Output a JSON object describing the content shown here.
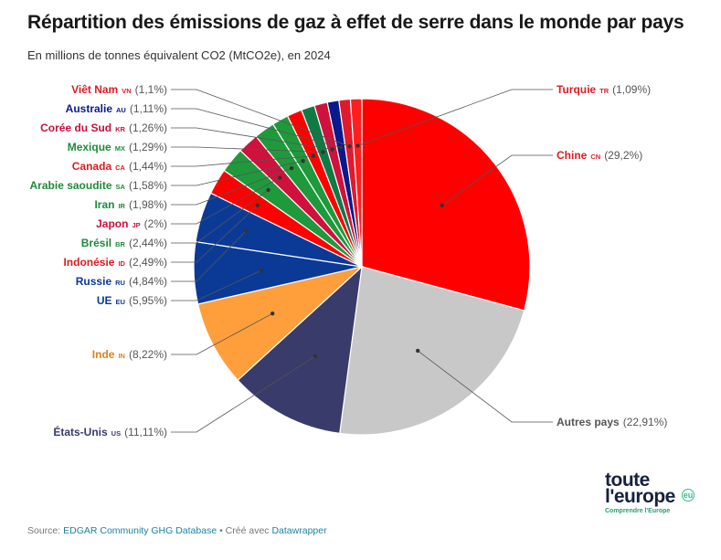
{
  "title": "Répartition des émissions de gaz à effet de serre dans le monde par pays",
  "subtitle": "En millions de tonnes équivalent CO2 (MtCO2e), en 2024",
  "footer": {
    "source_label": "Source: ",
    "source_name": "EDGAR Community GHG Database",
    "separator": " • Créé avec ",
    "tool": "Datawrapper"
  },
  "logo": {
    "line1": "toute",
    "line2": "l'europe",
    "suffix": "eu",
    "tagline": "Comprendre l'Europe"
  },
  "chart_data": {
    "type": "pie",
    "title": "Répartition des émissions de gaz à effet de serre dans le monde par pays",
    "unit": "%",
    "slices": [
      {
        "name": "Chine",
        "code": "CN",
        "value": 29.2,
        "display": "(29,2%)",
        "color": "#ff0000",
        "label_color": "#e01a22"
      },
      {
        "name": "Autres pays",
        "code": "",
        "value": 22.91,
        "display": "(22,91%)",
        "color": "#c8c8c8",
        "label_color": "#555555"
      },
      {
        "name": "États-Unis",
        "code": "US",
        "value": 11.11,
        "display": "(11,11%)",
        "color": "#393b6b",
        "label_color": "#393b6b"
      },
      {
        "name": "Inde",
        "code": "IN",
        "value": 8.22,
        "display": "(8,22%)",
        "color": "#ff9f3c",
        "label_color": "#d9821d"
      },
      {
        "name": "UE",
        "code": "EU",
        "value": 5.95,
        "display": "(5,95%)",
        "color": "#0b3a96",
        "label_color": "#0b3a96"
      },
      {
        "name": "Russie",
        "code": "RU",
        "value": 4.84,
        "display": "(4,84%)",
        "color": "#0b3a96",
        "label_color": "#0b3a96"
      },
      {
        "name": "Indonésie",
        "code": "ID",
        "value": 2.49,
        "display": "(2,49%)",
        "color": "#ff0000",
        "label_color": "#e01a22"
      },
      {
        "name": "Brésil",
        "code": "BR",
        "value": 2.44,
        "display": "(2,44%)",
        "color": "#1e9a3c",
        "label_color": "#1e8a3a"
      },
      {
        "name": "Japon",
        "code": "JP",
        "value": 2.0,
        "display": "(2%)",
        "color": "#d0113d",
        "label_color": "#c8103d"
      },
      {
        "name": "Iran",
        "code": "IR",
        "value": 1.98,
        "display": "(1,98%)",
        "color": "#1e9a3c",
        "label_color": "#1e8a3a"
      },
      {
        "name": "Arabie saoudite",
        "code": "SA",
        "value": 1.58,
        "display": "(1,58%)",
        "color": "#1e9a3c",
        "label_color": "#1e8a3a"
      },
      {
        "name": "Canada",
        "code": "CA",
        "value": 1.44,
        "display": "(1,44%)",
        "color": "#ff0000",
        "label_color": "#e01a22"
      },
      {
        "name": "Mexique",
        "code": "MX",
        "value": 1.29,
        "display": "(1,29%)",
        "color": "#0e7a45",
        "label_color": "#1e8a3a"
      },
      {
        "name": "Corée du Sud",
        "code": "KR",
        "value": 1.26,
        "display": "(1,26%)",
        "color": "#d0113d",
        "label_color": "#c8103d"
      },
      {
        "name": "Australie",
        "code": "AU",
        "value": 1.11,
        "display": "(1,11%)",
        "color": "#0a1a8c",
        "label_color": "#0a1a8c"
      },
      {
        "name": "Viêt Nam",
        "code": "VN",
        "value": 1.1,
        "display": "(1,1%)",
        "color": "#e01a2c",
        "label_color": "#e01a22"
      },
      {
        "name": "Turquie",
        "code": "TR",
        "value": 1.09,
        "display": "(1,09%)",
        "color": "#ff1f1f",
        "label_color": "#e01a22"
      }
    ]
  }
}
